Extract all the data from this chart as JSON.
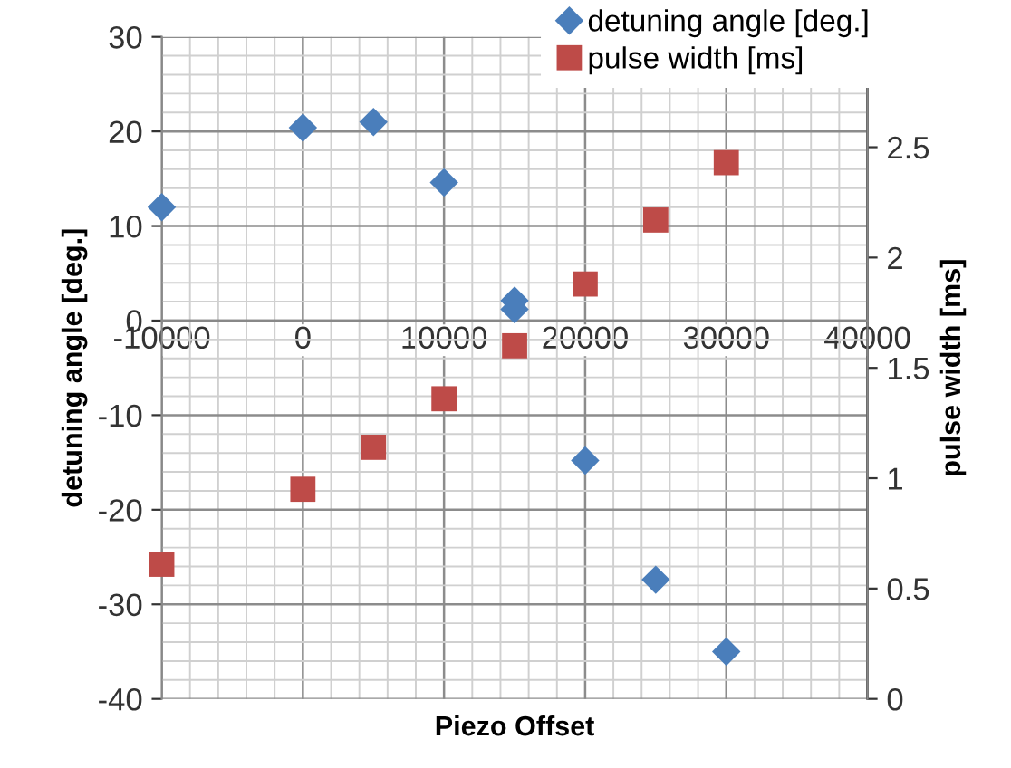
{
  "chart_data": {
    "type": "scatter",
    "xlabel": "Piezo Offset",
    "ylabel": "detuning angle [deg.]",
    "y2label": "pulse width [ms]",
    "xlim": [
      -10000,
      40000
    ],
    "xticks": [
      -10000,
      0,
      10000,
      20000,
      30000,
      40000
    ],
    "ylim": [
      -40,
      30
    ],
    "yticks": [
      -40,
      -30,
      -20,
      -10,
      0,
      10,
      20,
      30
    ],
    "y2lim": [
      0,
      3
    ],
    "y2ticks": [
      0,
      0.5,
      1,
      1.5,
      2,
      2.5
    ],
    "grid": true,
    "legend": "top right",
    "series": [
      {
        "name": "detuning angle [deg.]",
        "color": "#4a7ebb",
        "marker": "diamond",
        "x": [
          -10000,
          0,
          5000,
          10000,
          15000,
          15000,
          20000,
          25000,
          30000
        ],
        "values": [
          12,
          20.4,
          21,
          14.6,
          2.1,
          1.2,
          -14.8,
          -27.4,
          -35
        ]
      },
      {
        "name": "pulse width [ms]",
        "color": "#be4b48",
        "marker": "square",
        "axis": "y2",
        "x": [
          -10000,
          0,
          5000,
          10000,
          15000,
          20000,
          25000,
          30000
        ],
        "values": [
          0.61,
          0.95,
          1.14,
          1.36,
          1.6,
          1.88,
          2.17,
          2.43
        ]
      }
    ]
  }
}
